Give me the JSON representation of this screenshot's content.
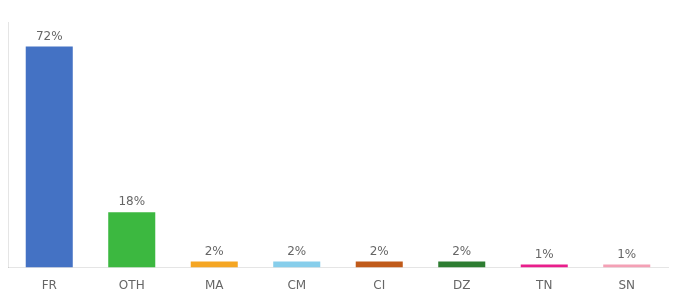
{
  "chart_data": {
    "type": "bar",
    "categories": [
      "FR",
      "OTH",
      "MA",
      "CM",
      "CI",
      "DZ",
      "TN",
      "SN"
    ],
    "values": [
      72,
      18,
      2,
      2,
      2,
      2,
      1,
      1
    ],
    "value_labels": [
      "72%",
      "18%",
      "2%",
      "2%",
      "2%",
      "2%",
      "1%",
      "1%"
    ],
    "colors": [
      "#4472C4",
      "#3CB840",
      "#F5A623",
      "#87CEEB",
      "#C05A1A",
      "#2E7D32",
      "#E91E8C",
      "#F4A0B5"
    ],
    "ylim": [
      0,
      80
    ],
    "grid": false,
    "data_labels": true,
    "tick_labels": "x"
  }
}
